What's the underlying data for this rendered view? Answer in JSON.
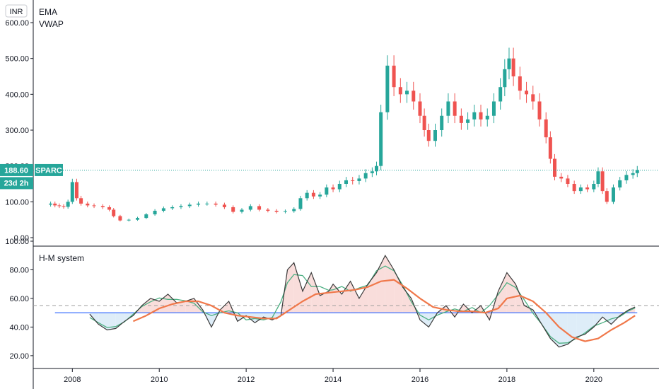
{
  "currency_badge": "INR",
  "main_pane": {
    "legend": [
      "EMA",
      "VWAP"
    ],
    "symbol_tag": "SPARC",
    "last_price_label": "188.60",
    "countdown_label": "23d 2h"
  },
  "indicator_pane": {
    "title": "H-M system"
  },
  "colors": {
    "up": "#26a69a",
    "down": "#ef5350",
    "price_line": "#26a69a",
    "indicator_fast": "#3a3a3a",
    "indicator_mid": "#4caf82",
    "indicator_slow": "#f0784a",
    "baseline": "#2962ff",
    "upper_level": "#9e9e9e",
    "fill_above": "#f8d7d5",
    "fill_below": "#d8eaf7"
  },
  "chart_data": [
    {
      "type": "candlestick",
      "title": "",
      "y_ticks": [
        "600.00",
        "500.00",
        "400.00",
        "300.00",
        "200.00",
        "100.00",
        "0.00"
      ],
      "ylim": [
        0,
        600
      ],
      "x_ticks": [
        "2008",
        "2010",
        "2012",
        "2014",
        "2016",
        "2018",
        "2020"
      ],
      "xlim": [
        2007.1,
        2021.5
      ],
      "last_price": 188.6,
      "series": [
        {
          "name": "Price",
          "points": [
            [
              2007.5,
              95
            ],
            [
              2007.6,
              90
            ],
            [
              2007.7,
              88
            ],
            [
              2007.8,
              86
            ],
            [
              2007.9,
              100
            ],
            [
              2008.0,
              155
            ],
            [
              2008.1,
              110
            ],
            [
              2008.2,
              95
            ],
            [
              2008.35,
              90
            ],
            [
              2008.5,
              88
            ],
            [
              2008.7,
              85
            ],
            [
              2008.85,
              78
            ],
            [
              2008.95,
              60
            ],
            [
              2009.1,
              48
            ],
            [
              2009.3,
              50
            ],
            [
              2009.5,
              55
            ],
            [
              2009.7,
              65
            ],
            [
              2009.9,
              75
            ],
            [
              2010.1,
              82
            ],
            [
              2010.3,
              85
            ],
            [
              2010.5,
              88
            ],
            [
              2010.7,
              92
            ],
            [
              2010.9,
              95
            ],
            [
              2011.1,
              95
            ],
            [
              2011.3,
              92
            ],
            [
              2011.5,
              85
            ],
            [
              2011.7,
              72
            ],
            [
              2011.9,
              78
            ],
            [
              2012.1,
              88
            ],
            [
              2012.3,
              78
            ],
            [
              2012.5,
              75
            ],
            [
              2012.7,
              72
            ],
            [
              2012.9,
              74
            ],
            [
              2013.1,
              80
            ],
            [
              2013.25,
              110
            ],
            [
              2013.4,
              125
            ],
            [
              2013.55,
              115
            ],
            [
              2013.7,
              120
            ],
            [
              2013.85,
              140
            ],
            [
              2014.0,
              135
            ],
            [
              2014.15,
              150
            ],
            [
              2014.3,
              160
            ],
            [
              2014.45,
              158
            ],
            [
              2014.6,
              165
            ],
            [
              2014.75,
              180
            ],
            [
              2014.9,
              185
            ],
            [
              2015.0,
              200
            ],
            [
              2015.1,
              350
            ],
            [
              2015.25,
              480
            ],
            [
              2015.4,
              420
            ],
            [
              2015.55,
              400
            ],
            [
              2015.7,
              410
            ],
            [
              2015.85,
              380
            ],
            [
              2016.0,
              340
            ],
            [
              2016.1,
              300
            ],
            [
              2016.2,
              270
            ],
            [
              2016.35,
              300
            ],
            [
              2016.5,
              340
            ],
            [
              2016.65,
              380
            ],
            [
              2016.8,
              340
            ],
            [
              2016.95,
              320
            ],
            [
              2017.1,
              330
            ],
            [
              2017.25,
              350
            ],
            [
              2017.4,
              330
            ],
            [
              2017.55,
              340
            ],
            [
              2017.7,
              380
            ],
            [
              2017.85,
              420
            ],
            [
              2017.95,
              470
            ],
            [
              2018.05,
              500
            ],
            [
              2018.15,
              450
            ],
            [
              2018.3,
              410
            ],
            [
              2018.45,
              400
            ],
            [
              2018.6,
              380
            ],
            [
              2018.75,
              330
            ],
            [
              2018.9,
              280
            ],
            [
              2019.0,
              220
            ],
            [
              2019.1,
              170
            ],
            [
              2019.25,
              165
            ],
            [
              2019.4,
              150
            ],
            [
              2019.55,
              130
            ],
            [
              2019.7,
              140
            ],
            [
              2019.85,
              135
            ],
            [
              2020.0,
              150
            ],
            [
              2020.1,
              185
            ],
            [
              2020.2,
              130
            ],
            [
              2020.3,
              100
            ],
            [
              2020.45,
              140
            ],
            [
              2020.6,
              160
            ],
            [
              2020.75,
              175
            ],
            [
              2020.9,
              180
            ],
            [
              2021.0,
              188.6
            ]
          ]
        }
      ]
    },
    {
      "type": "line",
      "title": "H-M system",
      "y_ticks": [
        "100.00",
        "80.00",
        "60.00",
        "40.00",
        "20.00"
      ],
      "ylim": [
        15,
        100
      ],
      "x_ticks": [
        "2008",
        "2010",
        "2012",
        "2014",
        "2016",
        "2018",
        "2020"
      ],
      "xlim": [
        2007.1,
        2021.5
      ],
      "baseline": 50,
      "upper_level": 55,
      "series": [
        {
          "name": "",
          "values": [
            [
              2008.4,
              49
            ],
            [
              2008.6,
              42
            ],
            [
              2008.8,
              38
            ],
            [
              2009.0,
              39
            ],
            [
              2009.2,
              44
            ],
            [
              2009.4,
              48
            ],
            [
              2009.6,
              55
            ],
            [
              2009.8,
              60
            ],
            [
              2010.0,
              58
            ],
            [
              2010.2,
              63
            ],
            [
              2010.4,
              57
            ],
            [
              2010.6,
              58
            ],
            [
              2010.8,
              60
            ],
            [
              2011.0,
              52
            ],
            [
              2011.2,
              40
            ],
            [
              2011.4,
              52
            ],
            [
              2011.6,
              58
            ],
            [
              2011.8,
              44
            ],
            [
              2012.0,
              48
            ],
            [
              2012.2,
              43
            ],
            [
              2012.4,
              47
            ],
            [
              2012.6,
              45
            ],
            [
              2012.8,
              48
            ],
            [
              2012.95,
              80
            ],
            [
              2013.1,
              85
            ],
            [
              2013.3,
              65
            ],
            [
              2013.5,
              78
            ],
            [
              2013.7,
              62
            ],
            [
              2013.9,
              65
            ],
            [
              2014.0,
              70
            ],
            [
              2014.2,
              63
            ],
            [
              2014.4,
              72
            ],
            [
              2014.6,
              60
            ],
            [
              2014.8,
              70
            ],
            [
              2015.0,
              78
            ],
            [
              2015.2,
              90
            ],
            [
              2015.4,
              80
            ],
            [
              2015.6,
              68
            ],
            [
              2015.8,
              60
            ],
            [
              2016.0,
              45
            ],
            [
              2016.2,
              40
            ],
            [
              2016.4,
              50
            ],
            [
              2016.6,
              55
            ],
            [
              2016.8,
              47
            ],
            [
              2017.0,
              56
            ],
            [
              2017.2,
              50
            ],
            [
              2017.4,
              55
            ],
            [
              2017.6,
              45
            ],
            [
              2017.8,
              65
            ],
            [
              2018.0,
              78
            ],
            [
              2018.2,
              70
            ],
            [
              2018.4,
              55
            ],
            [
              2018.6,
              52
            ],
            [
              2018.8,
              42
            ],
            [
              2019.0,
              32
            ],
            [
              2019.2,
              26
            ],
            [
              2019.4,
              28
            ],
            [
              2019.6,
              33
            ],
            [
              2019.8,
              35
            ],
            [
              2020.0,
              40
            ],
            [
              2020.2,
              47
            ],
            [
              2020.4,
              42
            ],
            [
              2020.6,
              48
            ],
            [
              2020.8,
              52
            ],
            [
              2020.95,
              54
            ]
          ]
        },
        {
          "name": "",
          "values": [
            [
              2009.4,
              44
            ],
            [
              2009.7,
              48
            ],
            [
              2010.0,
              53
            ],
            [
              2010.3,
              56
            ],
            [
              2010.6,
              58
            ],
            [
              2010.9,
              58
            ],
            [
              2011.2,
              55
            ],
            [
              2011.5,
              50
            ],
            [
              2011.8,
              48
            ],
            [
              2012.1,
              47
            ],
            [
              2012.4,
              46
            ],
            [
              2012.7,
              46
            ],
            [
              2013.0,
              52
            ],
            [
              2013.3,
              58
            ],
            [
              2013.6,
              63
            ],
            [
              2013.9,
              64
            ],
            [
              2014.2,
              65
            ],
            [
              2014.5,
              66
            ],
            [
              2014.8,
              68
            ],
            [
              2015.1,
              72
            ],
            [
              2015.4,
              73
            ],
            [
              2015.7,
              67
            ],
            [
              2016.0,
              60
            ],
            [
              2016.3,
              54
            ],
            [
              2016.6,
              52
            ],
            [
              2016.9,
              51
            ],
            [
              2017.2,
              51
            ],
            [
              2017.5,
              50
            ],
            [
              2017.8,
              53
            ],
            [
              2018.0,
              60
            ],
            [
              2018.3,
              62
            ],
            [
              2018.6,
              58
            ],
            [
              2018.9,
              50
            ],
            [
              2019.2,
              40
            ],
            [
              2019.5,
              33
            ],
            [
              2019.8,
              30
            ],
            [
              2020.1,
              32
            ],
            [
              2020.4,
              38
            ],
            [
              2020.7,
              43
            ],
            [
              2020.95,
              48
            ]
          ]
        }
      ]
    }
  ]
}
